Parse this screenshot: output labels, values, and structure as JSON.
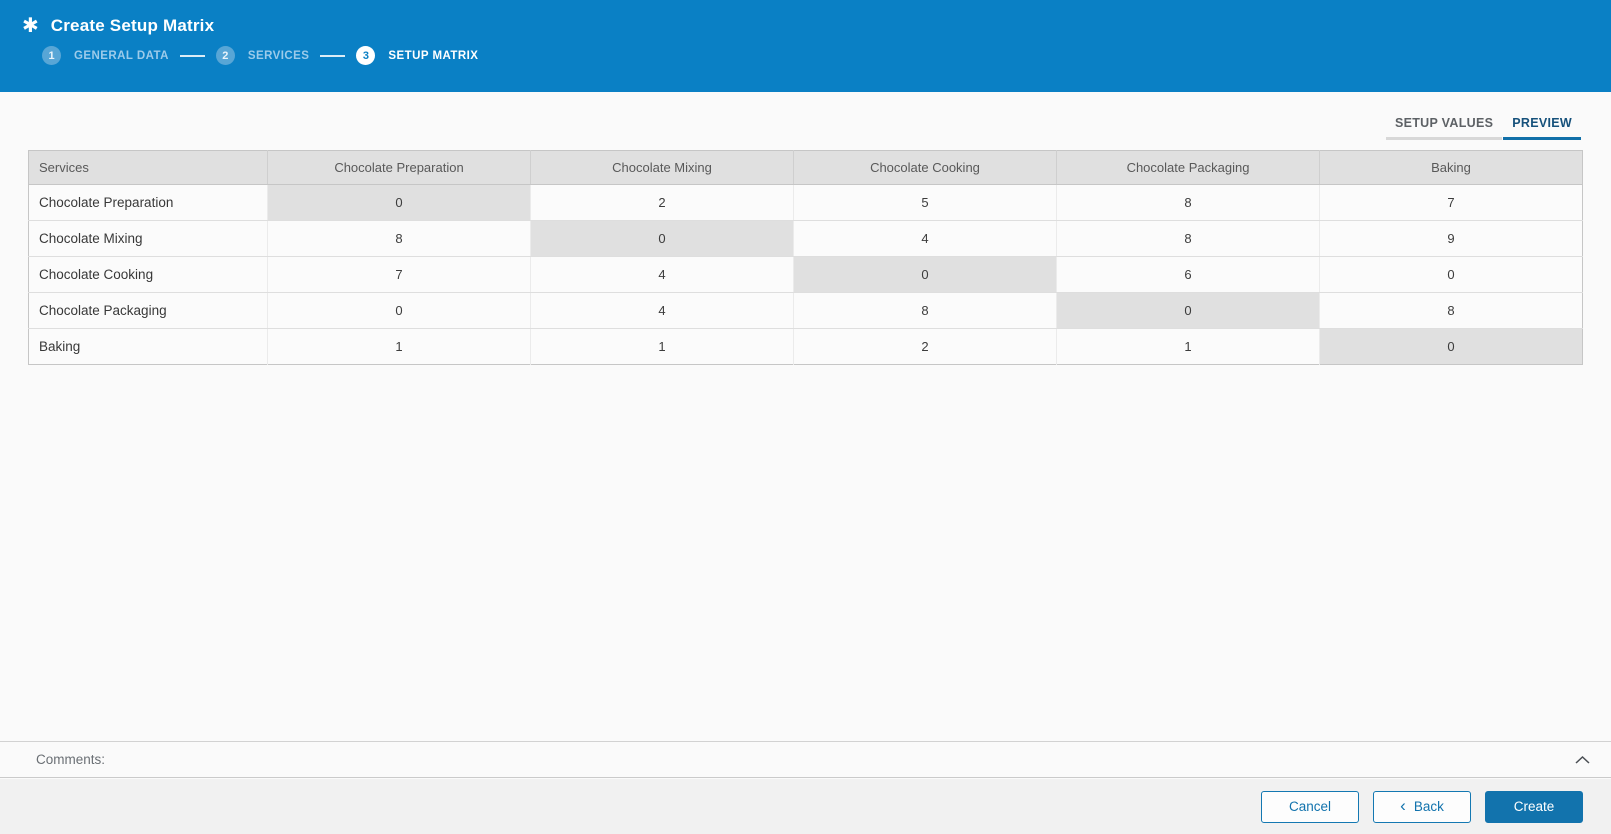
{
  "app": {
    "title": "Create Setup Matrix"
  },
  "wizard_steps": [
    {
      "number": "1",
      "label": "GENERAL DATA",
      "state": "inactive"
    },
    {
      "number": "2",
      "label": "SERVICES",
      "state": "inactive"
    },
    {
      "number": "3",
      "label": "SETUP MATRIX",
      "state": "active"
    }
  ],
  "tabs": [
    {
      "label": "SETUP VALUES",
      "active": false
    },
    {
      "label": "PREVIEW",
      "active": true
    }
  ],
  "matrix": {
    "corner_header": "Services",
    "column_headers": [
      "Chocolate Preparation",
      "Chocolate Mixing",
      "Chocolate Cooking",
      "Chocolate Packaging",
      "Baking"
    ],
    "rows": [
      {
        "service": "Chocolate Preparation",
        "values": [
          "0",
          "2",
          "5",
          "8",
          "7"
        ]
      },
      {
        "service": "Chocolate Mixing",
        "values": [
          "8",
          "0",
          "4",
          "8",
          "9"
        ]
      },
      {
        "service": "Chocolate Cooking",
        "values": [
          "7",
          "4",
          "0",
          "6",
          "0"
        ]
      },
      {
        "service": "Chocolate Packaging",
        "values": [
          "0",
          "4",
          "8",
          "0",
          "8"
        ]
      },
      {
        "service": "Baking",
        "values": [
          "1",
          "1",
          "2",
          "1",
          "0"
        ]
      }
    ],
    "diagonal_highlighted": true
  },
  "comments": {
    "label": "Comments:"
  },
  "footer_buttons": {
    "cancel": "Cancel",
    "back": "Back",
    "back_chevron": "‹",
    "create": "Create"
  },
  "colors": {
    "appbar_blue": "#0a80c5",
    "active_tab_blue": "#1170a9",
    "primary_button_blue": "#1273ad",
    "table_header_gray": "#e0e0e0",
    "diagonal_cell_gray": "#e0e0e0",
    "page_background": "#fafafa",
    "footer_background": "#f1f1f1"
  }
}
